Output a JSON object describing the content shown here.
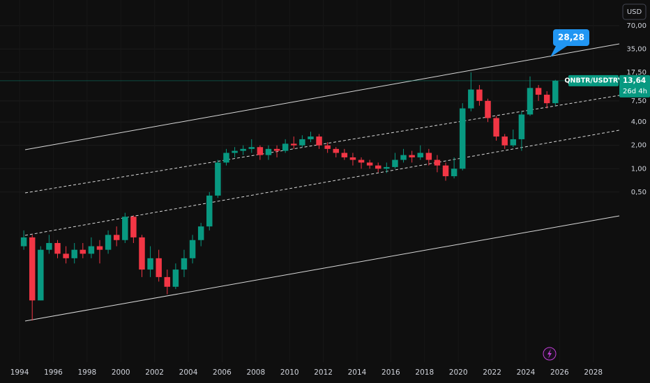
{
  "chart_data": {
    "type": "candlestick",
    "currency": "USD",
    "symbol": "QNBTR/USDTRY",
    "last_price_label": "13,64",
    "countdown": "26d 4h",
    "target_label": "28,28",
    "log_scale": true,
    "grid": true,
    "up_color": "#089981",
    "down_color": "#f23645",
    "xlim": [
      1992.84,
      2029.54
    ],
    "xticks": [
      1994,
      1996,
      1998,
      2000,
      2002,
      2004,
      2006,
      2008,
      2010,
      2012,
      2014,
      2016,
      2018,
      2020,
      2022,
      2024,
      2026,
      2028
    ],
    "ylim": [
      0.0032,
      150
    ],
    "yticks": [
      {
        "value": 0.5,
        "label": "0,50"
      },
      {
        "value": 1,
        "label": "1,00"
      },
      {
        "value": 2,
        "label": "2,00"
      },
      {
        "value": 4,
        "label": "4,00"
      },
      {
        "value": 7.5,
        "label": "7,50"
      },
      {
        "value": 17.5,
        "label": "17,50"
      },
      {
        "value": 35,
        "label": "35,00"
      },
      {
        "value": 70,
        "label": "70,00"
      }
    ],
    "x": [
      1994.0,
      1994.5,
      1995.0,
      1995.5,
      1996.0,
      1996.5,
      1997.0,
      1997.5,
      1998.0,
      1998.5,
      1999.0,
      1999.5,
      2000.0,
      2000.5,
      2001.0,
      2001.5,
      2002.0,
      2002.5,
      2003.0,
      2003.5,
      2004.0,
      2004.5,
      2005.0,
      2005.5,
      2006.0,
      2006.5,
      2007.0,
      2007.5,
      2008.0,
      2008.5,
      2009.0,
      2009.5,
      2010.0,
      2010.5,
      2011.0,
      2011.5,
      2012.0,
      2012.5,
      2013.0,
      2013.5,
      2014.0,
      2014.5,
      2015.0,
      2015.5,
      2016.0,
      2016.5,
      2017.0,
      2017.5,
      2018.0,
      2018.5,
      2019.0,
      2019.5,
      2020.0,
      2020.5,
      2021.0,
      2021.5,
      2022.0,
      2022.5,
      2023.0,
      2023.5,
      2024.0,
      2024.5,
      2025.0,
      2025.5
    ],
    "open": [
      0.1,
      0.13,
      0.02,
      0.09,
      0.11,
      0.08,
      0.07,
      0.09,
      0.08,
      0.1,
      0.09,
      0.14,
      0.12,
      0.24,
      0.13,
      0.05,
      0.07,
      0.04,
      0.03,
      0.05,
      0.07,
      0.12,
      0.18,
      0.45,
      1.2,
      1.6,
      1.7,
      1.8,
      1.9,
      1.5,
      1.8,
      1.7,
      2.1,
      2.0,
      2.4,
      2.6,
      2.0,
      1.8,
      1.6,
      1.4,
      1.3,
      1.2,
      1.1,
      1.0,
      1.05,
      1.3,
      1.5,
      1.4,
      1.6,
      1.3,
      1.1,
      0.8,
      1.0,
      6.0,
      10.5,
      7.5,
      4.5,
      2.6,
      2.0,
      2.4,
      5.0,
      11.0,
      9.0,
      7.0
    ],
    "high": [
      0.16,
      0.14,
      0.1,
      0.14,
      0.12,
      0.1,
      0.11,
      0.11,
      0.13,
      0.12,
      0.16,
      0.18,
      0.27,
      0.25,
      0.14,
      0.1,
      0.09,
      0.05,
      0.06,
      0.09,
      0.14,
      0.2,
      0.5,
      1.3,
      1.8,
      1.9,
      2.0,
      2.4,
      2.0,
      2.0,
      2.0,
      2.4,
      2.6,
      2.7,
      3.0,
      2.8,
      2.2,
      1.9,
      1.8,
      1.6,
      1.4,
      1.3,
      1.2,
      1.2,
      1.6,
      1.8,
      1.7,
      2.0,
      1.8,
      1.5,
      1.2,
      1.4,
      7.0,
      17.5,
      12.0,
      8.0,
      4.8,
      2.8,
      3.2,
      5.5,
      15.5,
      12.0,
      10.0,
      14.0
    ],
    "low": [
      0.09,
      0.011,
      0.02,
      0.08,
      0.07,
      0.06,
      0.06,
      0.07,
      0.07,
      0.06,
      0.08,
      0.1,
      0.11,
      0.11,
      0.04,
      0.04,
      0.035,
      0.024,
      0.028,
      0.04,
      0.06,
      0.1,
      0.16,
      0.42,
      1.1,
      1.4,
      1.5,
      1.6,
      1.3,
      1.3,
      1.4,
      1.6,
      1.8,
      1.9,
      2.2,
      1.8,
      1.6,
      1.4,
      1.3,
      1.1,
      1.0,
      1.0,
      0.9,
      0.88,
      1.0,
      1.2,
      1.2,
      1.3,
      1.1,
      0.9,
      0.7,
      0.75,
      0.95,
      5.5,
      6.5,
      4.0,
      2.3,
      1.8,
      1.9,
      1.7,
      4.8,
      7.5,
      6.0,
      6.5
    ],
    "close": [
      0.13,
      0.02,
      0.09,
      0.11,
      0.08,
      0.07,
      0.09,
      0.08,
      0.1,
      0.09,
      0.14,
      0.12,
      0.24,
      0.13,
      0.05,
      0.07,
      0.04,
      0.03,
      0.05,
      0.07,
      0.12,
      0.18,
      0.45,
      1.2,
      1.6,
      1.7,
      1.8,
      1.9,
      1.5,
      1.8,
      1.7,
      2.1,
      2.0,
      2.4,
      2.6,
      2.0,
      1.8,
      1.6,
      1.4,
      1.3,
      1.2,
      1.1,
      1.0,
      1.05,
      1.3,
      1.5,
      1.4,
      1.6,
      1.3,
      1.1,
      0.8,
      1.0,
      6.0,
      10.5,
      7.5,
      4.5,
      2.6,
      2.0,
      2.4,
      5.0,
      11.0,
      9.0,
      7.0,
      13.64
    ]
  }
}
